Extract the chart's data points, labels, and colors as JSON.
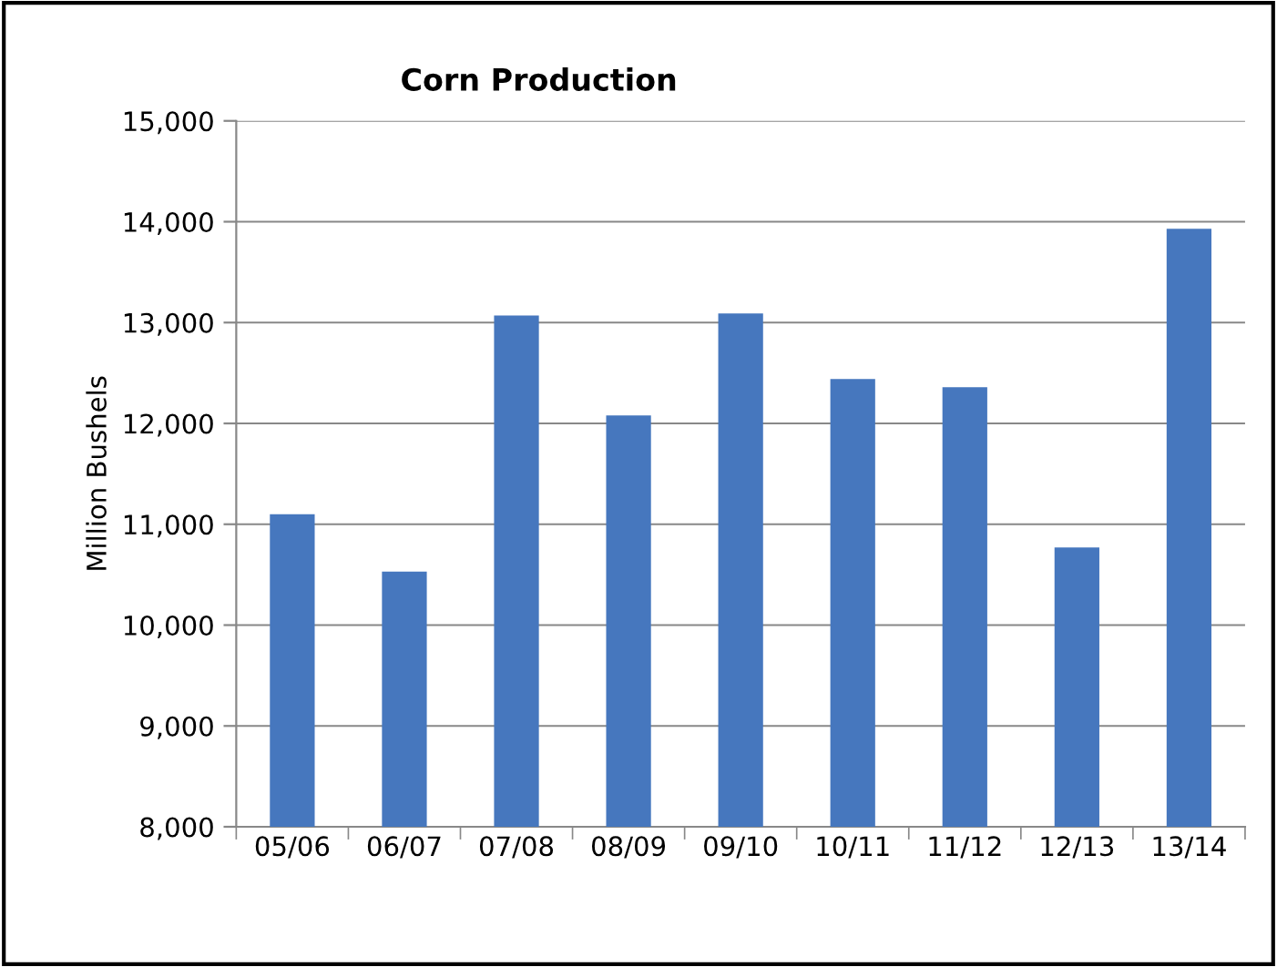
{
  "chart_data": {
    "type": "bar",
    "title": "Corn Production",
    "ylabel": "Million Bushels",
    "categories": [
      "05/06",
      "06/07",
      "07/08",
      "08/09",
      "09/10",
      "10/11",
      "11/12",
      "12/13",
      "13/14"
    ],
    "values": [
      11100,
      10530,
      13070,
      12080,
      13090,
      12440,
      12360,
      10770,
      13930
    ],
    "color": "#4677be",
    "ylim": [
      8000,
      15000
    ],
    "yticks": [
      {
        "value": 8000,
        "label": "8,000"
      },
      {
        "value": 9000,
        "label": "9,000"
      },
      {
        "value": 10000,
        "label": "10,000"
      },
      {
        "value": 11000,
        "label": "11,000"
      },
      {
        "value": 12000,
        "label": "12,000"
      },
      {
        "value": 13000,
        "label": "13,000"
      },
      {
        "value": 14000,
        "label": "14,000"
      },
      {
        "value": 15000,
        "label": "15,000"
      }
    ],
    "grid": "y"
  }
}
